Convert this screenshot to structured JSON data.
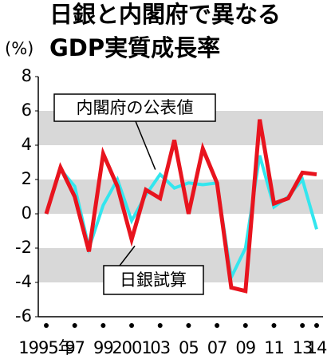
{
  "chart_data": {
    "type": "line",
    "title": "日銀と内閣府で異なる",
    "subtitle": "GDP実質成長率",
    "y_label": "(%)",
    "categories": [
      "1995年",
      null,
      "97",
      null,
      "99",
      null,
      "2001",
      null,
      "03",
      null,
      "05",
      null,
      "07",
      null,
      "09",
      null,
      "11",
      null,
      "13",
      "14"
    ],
    "series": [
      {
        "name": "内閣府の公表値",
        "color": "#33e6ee",
        "values": [
          0,
          2.6,
          1.6,
          -2.0,
          0.5,
          2.0,
          -0.4,
          1.1,
          2.3,
          1.5,
          1.8,
          1.7,
          1.8,
          -3.7,
          -2.0,
          3.4,
          0.4,
          1.0,
          2.0,
          -0.9
        ]
      },
      {
        "name": "日銀試算",
        "color": "#e8141e",
        "values": [
          0,
          2.7,
          1.0,
          -2.2,
          3.5,
          1.6,
          -1.5,
          1.4,
          0.9,
          4.3,
          0,
          3.8,
          1.8,
          -4.3,
          -4.5,
          5.5,
          0.6,
          0.9,
          2.4,
          2.3
        ]
      }
    ],
    "ylim": [
      -6,
      8
    ],
    "yticks": [
      8,
      6,
      4,
      2,
      0,
      -2,
      -4,
      -6
    ]
  }
}
